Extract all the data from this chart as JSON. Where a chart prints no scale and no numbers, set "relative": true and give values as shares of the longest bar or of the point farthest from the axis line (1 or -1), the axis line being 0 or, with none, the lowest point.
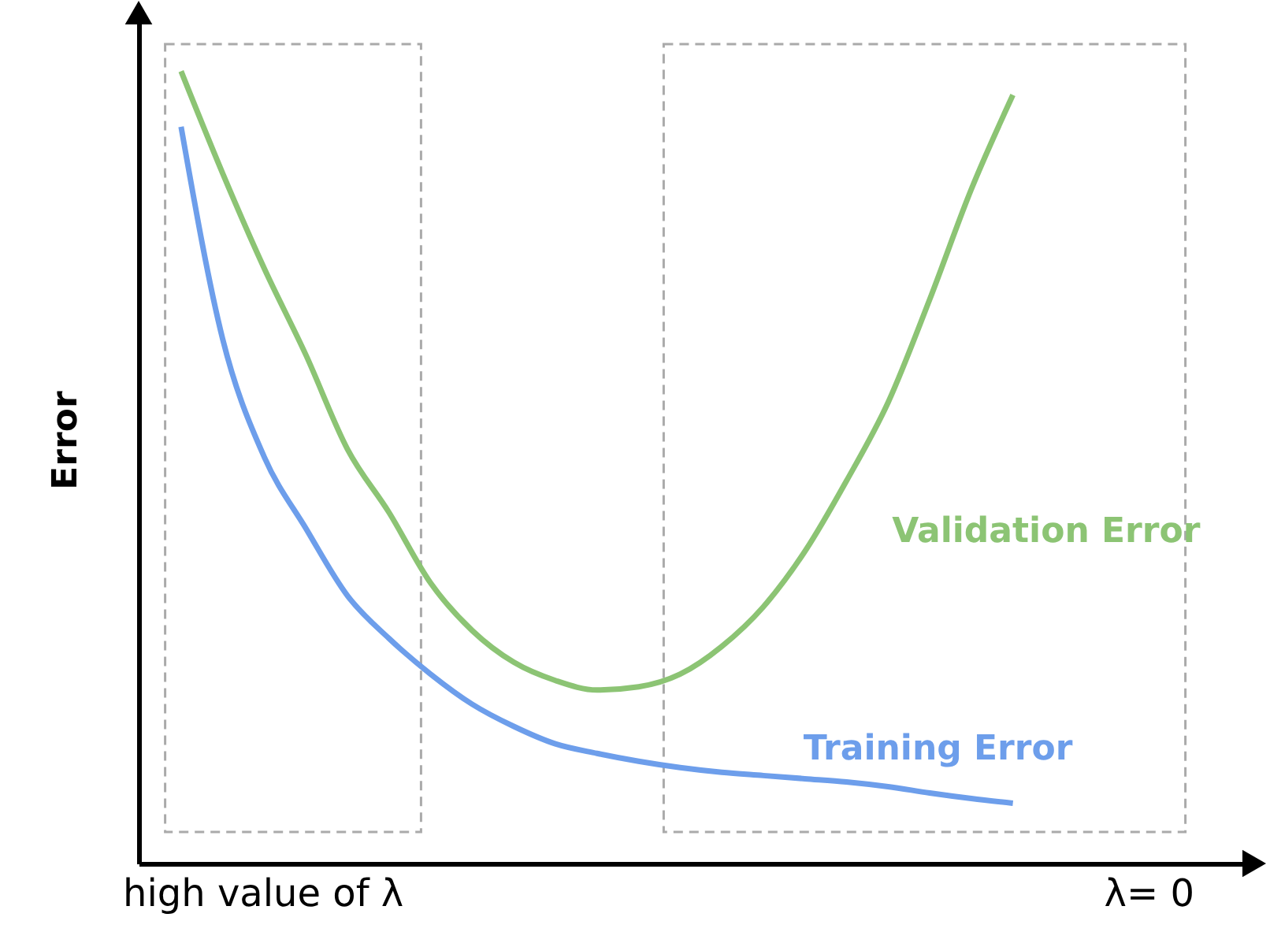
{
  "chart_data": {
    "type": "line",
    "relative": true,
    "ylabel": "Error",
    "categories": [
      null,
      null,
      null,
      null,
      null,
      null,
      null,
      null,
      null,
      null,
      null,
      null,
      null,
      null,
      null,
      null,
      null,
      null,
      null,
      null,
      null
    ],
    "series": [
      {
        "name": "Validation Error",
        "color": "#8cc474",
        "values": [
          1.0,
          0.871,
          0.751,
          0.642,
          0.523,
          0.443,
          0.354,
          0.294,
          0.254,
          0.231,
          0.219,
          0.223,
          0.239,
          0.274,
          0.324,
          0.394,
          0.483,
          0.582,
          0.712,
          0.851,
          0.97
        ]
      },
      {
        "name": "Training Error",
        "color": "#6d9eeb",
        "values": [
          0.93,
          0.662,
          0.513,
          0.423,
          0.338,
          0.284,
          0.239,
          0.201,
          0.173,
          0.151,
          0.139,
          0.129,
          0.121,
          0.115,
          0.111,
          0.107,
          0.103,
          0.097,
          0.089,
          0.082,
          0.076
        ]
      }
    ],
    "annotations": [
      "high value of λ",
      "λ= 0"
    ],
    "grid": false,
    "legend": false,
    "line_style": "solid",
    "marker": "none"
  }
}
